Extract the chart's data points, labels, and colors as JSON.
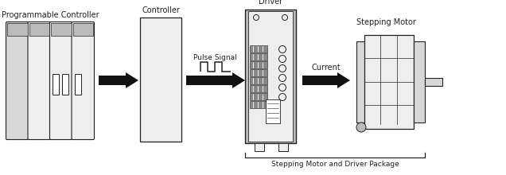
{
  "bg_color": "#ffffff",
  "labels": {
    "programmable_controller": "Programmable Controller",
    "controller": "Controller",
    "pulse_signal": "Pulse Signal",
    "driver": "Driver",
    "current": "Current",
    "stepping_motor": "Stepping Motor",
    "package": "Stepping Motor and Driver Package"
  },
  "colors": {
    "box_fill": "#eeeeee",
    "box_edge": "#444444",
    "arrow_fill": "#111111",
    "white": "#ffffff",
    "dark": "#222222",
    "light_gray": "#d8d8d8",
    "mid_gray": "#bbbbbb",
    "dark_gray": "#888888"
  },
  "font_sizes": {
    "label": 7.0,
    "small": 6.0
  }
}
